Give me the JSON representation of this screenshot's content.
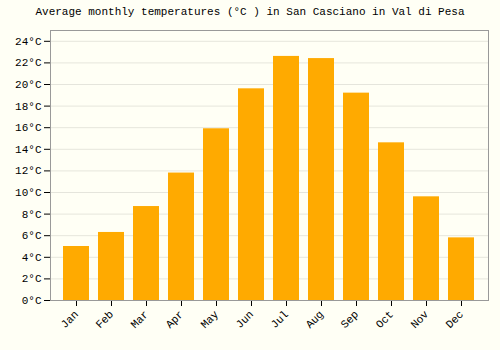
{
  "chart_data": {
    "type": "bar",
    "title": "Average monthly temperatures (°C ) in San Casciano in Val di Pesa",
    "categories": [
      "Jan",
      "Feb",
      "Mar",
      "Apr",
      "May",
      "Jun",
      "Jul",
      "Aug",
      "Sep",
      "Oct",
      "Nov",
      "Dec"
    ],
    "values": [
      5.0,
      6.3,
      8.7,
      11.8,
      15.9,
      19.6,
      22.6,
      22.4,
      19.2,
      14.6,
      9.6,
      5.8
    ],
    "color": "#FFAA00",
    "ylim": [
      0,
      25
    ],
    "yticks": [
      {
        "value": 0,
        "label": "0°C"
      },
      {
        "value": 2,
        "label": "2°C"
      },
      {
        "value": 4,
        "label": "4°C"
      },
      {
        "value": 6,
        "label": "6°C"
      },
      {
        "value": 8,
        "label": "8°C"
      },
      {
        "value": 10,
        "label": "10°C"
      },
      {
        "value": 12,
        "label": "12°C"
      },
      {
        "value": 14,
        "label": "14°C"
      },
      {
        "value": 16,
        "label": "16°C"
      },
      {
        "value": 18,
        "label": "18°C"
      },
      {
        "value": 20,
        "label": "20°C"
      },
      {
        "value": 22,
        "label": "22°C"
      },
      {
        "value": 24,
        "label": "24°C"
      }
    ],
    "grid": true
  }
}
